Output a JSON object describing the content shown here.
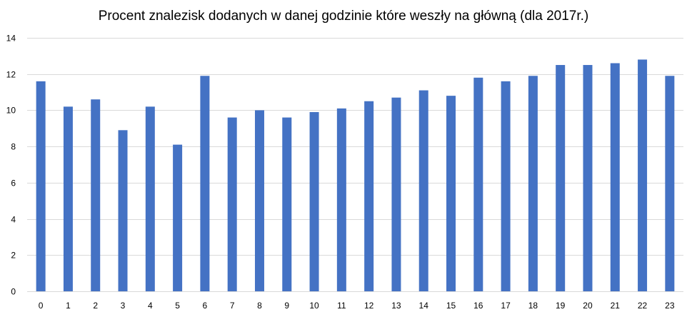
{
  "chart_data": {
    "type": "bar",
    "title": "Procent znalezisk dodanych w danej godzinie które weszły na główną (dla 2017r.)",
    "xlabel": "",
    "ylabel": "",
    "categories": [
      "0",
      "1",
      "2",
      "3",
      "4",
      "5",
      "6",
      "7",
      "8",
      "9",
      "10",
      "11",
      "12",
      "13",
      "14",
      "15",
      "16",
      "17",
      "18",
      "19",
      "20",
      "21",
      "22",
      "23"
    ],
    "values": [
      11.6,
      10.2,
      10.6,
      8.9,
      10.2,
      8.1,
      11.9,
      9.6,
      10.0,
      9.6,
      9.9,
      10.1,
      10.5,
      10.7,
      11.1,
      10.8,
      11.8,
      11.6,
      11.9,
      12.5,
      12.5,
      12.6,
      12.8,
      11.9
    ],
    "ylim": [
      0,
      14
    ],
    "yticks": [
      0,
      2,
      4,
      6,
      8,
      10,
      12,
      14
    ],
    "grid": true,
    "legend": "none",
    "colors": {
      "bar": "#4472c4",
      "grid": "#d9d9d9",
      "text": "#000000"
    }
  }
}
